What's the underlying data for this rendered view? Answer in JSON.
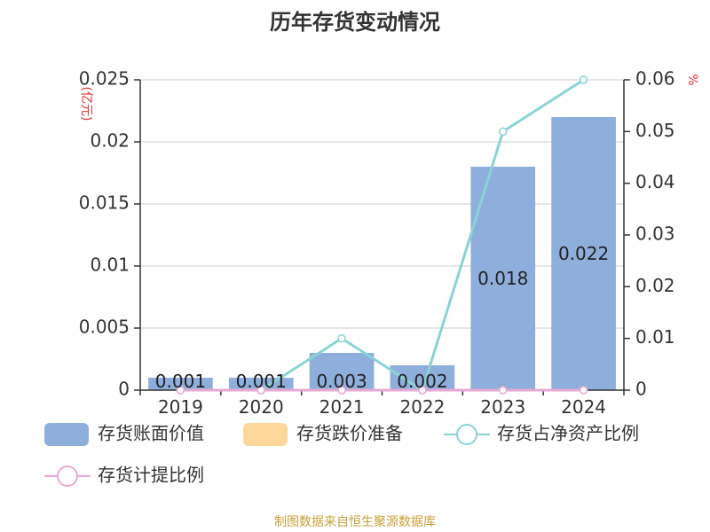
{
  "chart_data": {
    "type": "bar",
    "title": "历年存货变动情况",
    "categories": [
      "2019",
      "2020",
      "2021",
      "2022",
      "2023",
      "2024"
    ],
    "y_left": {
      "unit": "(亿元)",
      "ylim": [
        0,
        0.025
      ],
      "ticks": [
        "0",
        "0.005",
        "0.01",
        "0.015",
        "0.02",
        "0.025"
      ],
      "unit_color": "#e03030"
    },
    "y_right": {
      "unit": "%",
      "ylim": [
        0,
        0.06
      ],
      "ticks": [
        "0",
        "0.01",
        "0.02",
        "0.03",
        "0.04",
        "0.05",
        "0.06"
      ],
      "unit_color": "#e03030"
    },
    "series": [
      {
        "name": "存货账面价值",
        "kind": "bar",
        "axis": "left",
        "color": "#8eaedb",
        "values": [
          0.001,
          0.001,
          0.003,
          0.002,
          0.018,
          0.022
        ],
        "labels": [
          "0.001",
          "0.001",
          "0.003",
          "0.002",
          "0.018",
          "0.022"
        ]
      },
      {
        "name": "存货跌价准备",
        "kind": "bar",
        "axis": "left",
        "color": "#fdd79a",
        "values": [
          0,
          0,
          0,
          0,
          0,
          0
        ]
      },
      {
        "name": "存货占净资产比例",
        "kind": "line",
        "axis": "right",
        "color": "#8ad3d5",
        "values": [
          0,
          0,
          0.01,
          0,
          0.05,
          0.06
        ]
      },
      {
        "name": "存货计提比例",
        "kind": "line",
        "axis": "right",
        "color": "#e8a8d4",
        "values": [
          0,
          0,
          0,
          0,
          0,
          0
        ]
      }
    ],
    "grid": true,
    "legend_position": "bottom"
  },
  "source": {
    "text": "制图数据来自恒生聚源数据库",
    "color": "#c8a03a"
  }
}
